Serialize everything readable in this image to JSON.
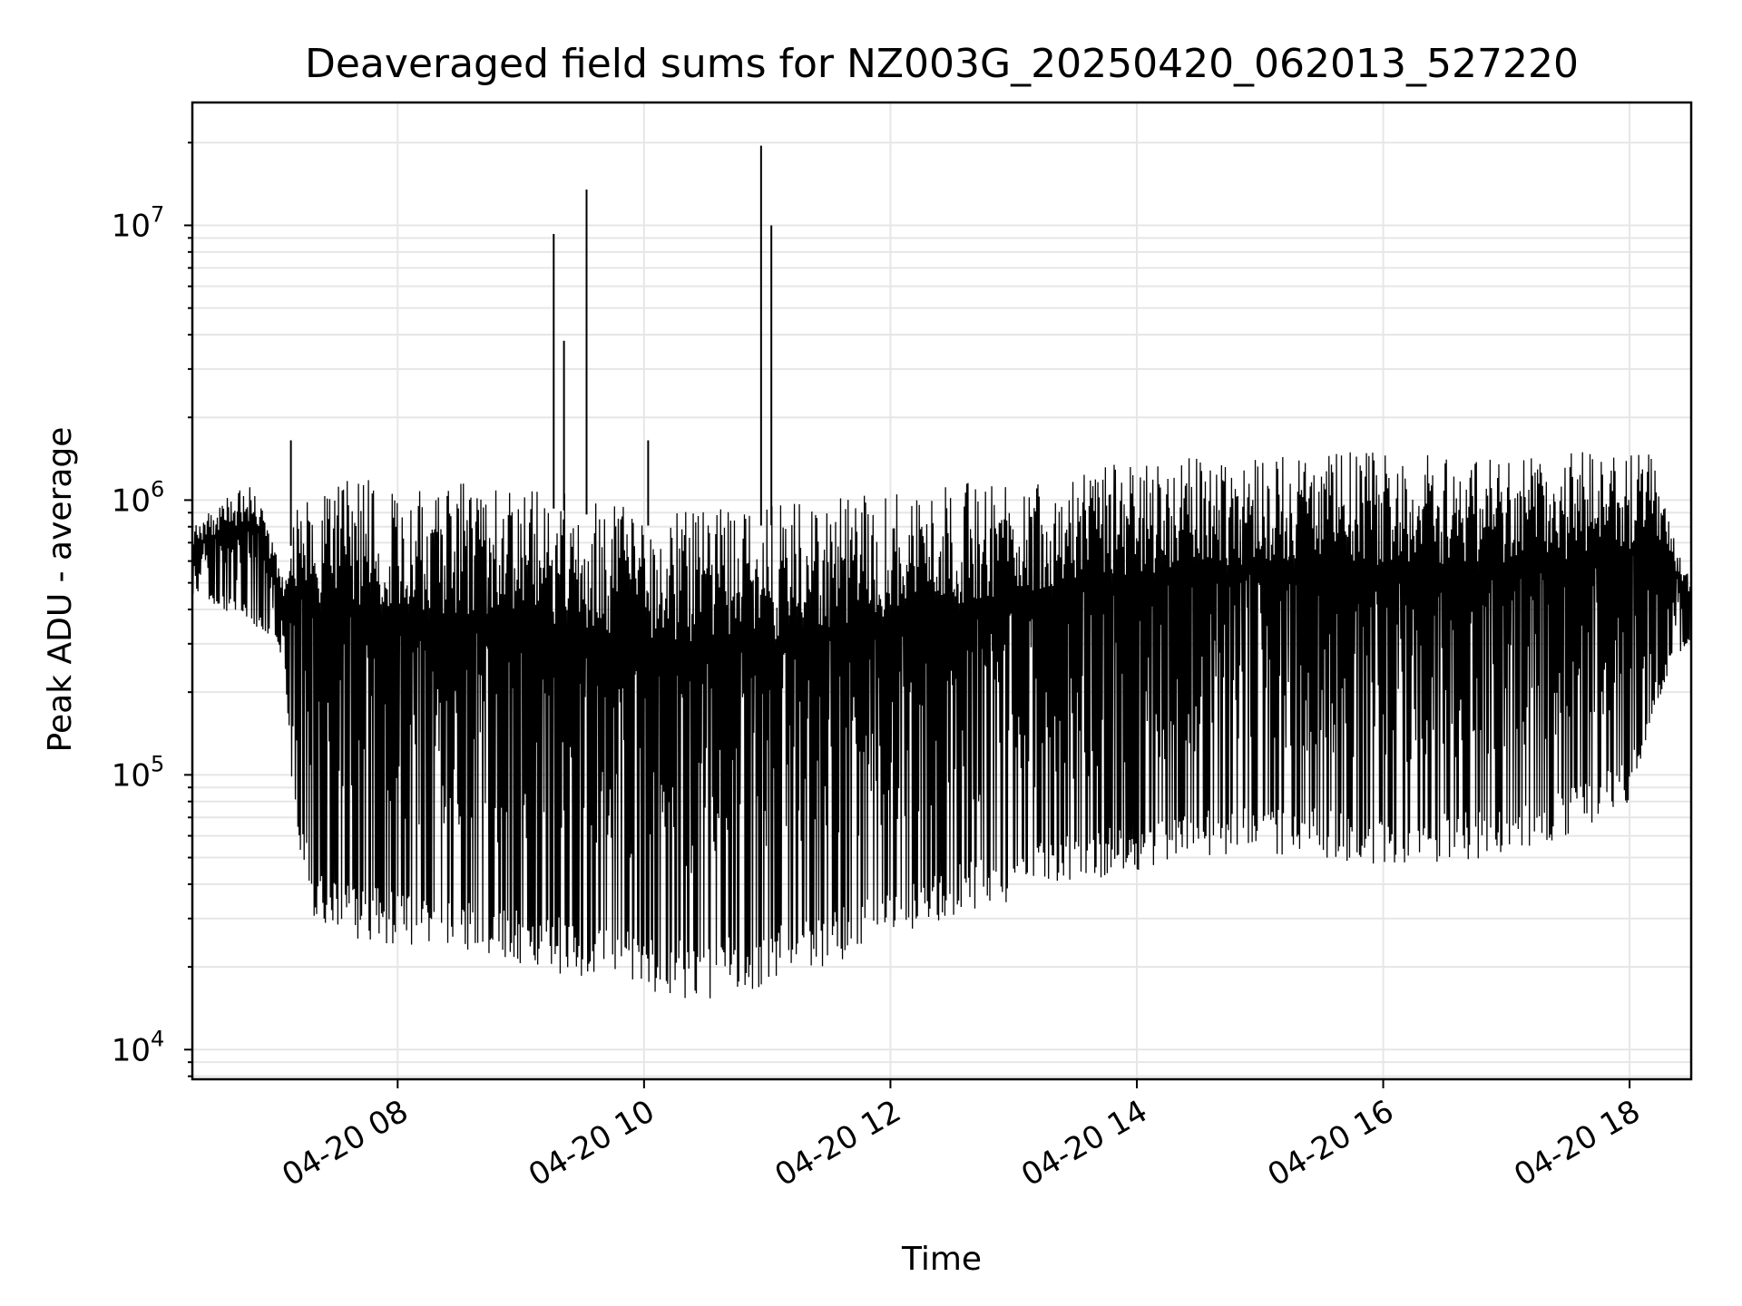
{
  "chart_data": {
    "type": "line",
    "title": "Deaveraged field sums for NZ003G_20250420_062013_527220",
    "xlabel": "Time",
    "ylabel": "Peak ADU - average",
    "yscale": "log",
    "xlim": [
      "2025-04-20T06:20",
      "2025-04-20T18:30"
    ],
    "ylim": [
      7800,
      28000000
    ],
    "grid": true,
    "grid_minor": true,
    "xticks": [
      "04-20 08",
      "04-20 10",
      "04-20 12",
      "04-20 14",
      "04-20 16",
      "04-20 18"
    ],
    "xtick_values": [
      "2025-04-20T08:00",
      "2025-04-20T10:00",
      "2025-04-20T12:00",
      "2025-04-20T14:00",
      "2025-04-20T16:00",
      "2025-04-20T18:00"
    ],
    "ytick_values": [
      10000,
      100000,
      1000000,
      10000000
    ],
    "ytick_base": "10",
    "ytick_exponents": [
      "4",
      "5",
      "6",
      "7"
    ],
    "series_color": "#000000",
    "envelope": {
      "time": [
        "06:20",
        "06:35",
        "06:50",
        "07:00",
        "07:05",
        "07:10",
        "07:20",
        "07:40",
        "08:00",
        "08:30",
        "09:00",
        "09:30",
        "10:00",
        "10:30",
        "11:00",
        "11:30",
        "12:00",
        "12:30",
        "13:00",
        "13:30",
        "14:00",
        "14:30",
        "15:00",
        "15:30",
        "16:00",
        "16:30",
        "17:00",
        "17:30",
        "18:00",
        "18:10",
        "18:20",
        "18:30"
      ],
      "upper": [
        800000,
        1000000,
        1200000,
        700000,
        500000,
        1100000,
        1200000,
        1200000,
        1150000,
        1150000,
        1150000,
        1050000,
        950000,
        950000,
        950000,
        1000000,
        1100000,
        1150000,
        1200000,
        1300000,
        1400000,
        1450000,
        1500000,
        1500000,
        1550000,
        1500000,
        1500000,
        1500000,
        1500000,
        1500000,
        800000,
        500000
      ],
      "lower": [
        450000,
        400000,
        350000,
        300000,
        250000,
        60000,
        28000,
        25000,
        24000,
        22000,
        20000,
        18000,
        16000,
        15000,
        17000,
        20000,
        24000,
        30000,
        35000,
        40000,
        45000,
        50000,
        52000,
        50000,
        45000,
        48000,
        50000,
        60000,
        80000,
        150000,
        250000,
        300000
      ]
    },
    "spikes": [
      {
        "time": "09:16",
        "value": 9300000
      },
      {
        "time": "09:21",
        "value": 3800000
      },
      {
        "time": "09:32",
        "value": 13500000
      },
      {
        "time": "10:02",
        "value": 1650000
      },
      {
        "time": "10:57",
        "value": 19500000
      },
      {
        "time": "11:02",
        "value": 10000000
      },
      {
        "time": "07:08",
        "value": 1650000
      }
    ]
  }
}
